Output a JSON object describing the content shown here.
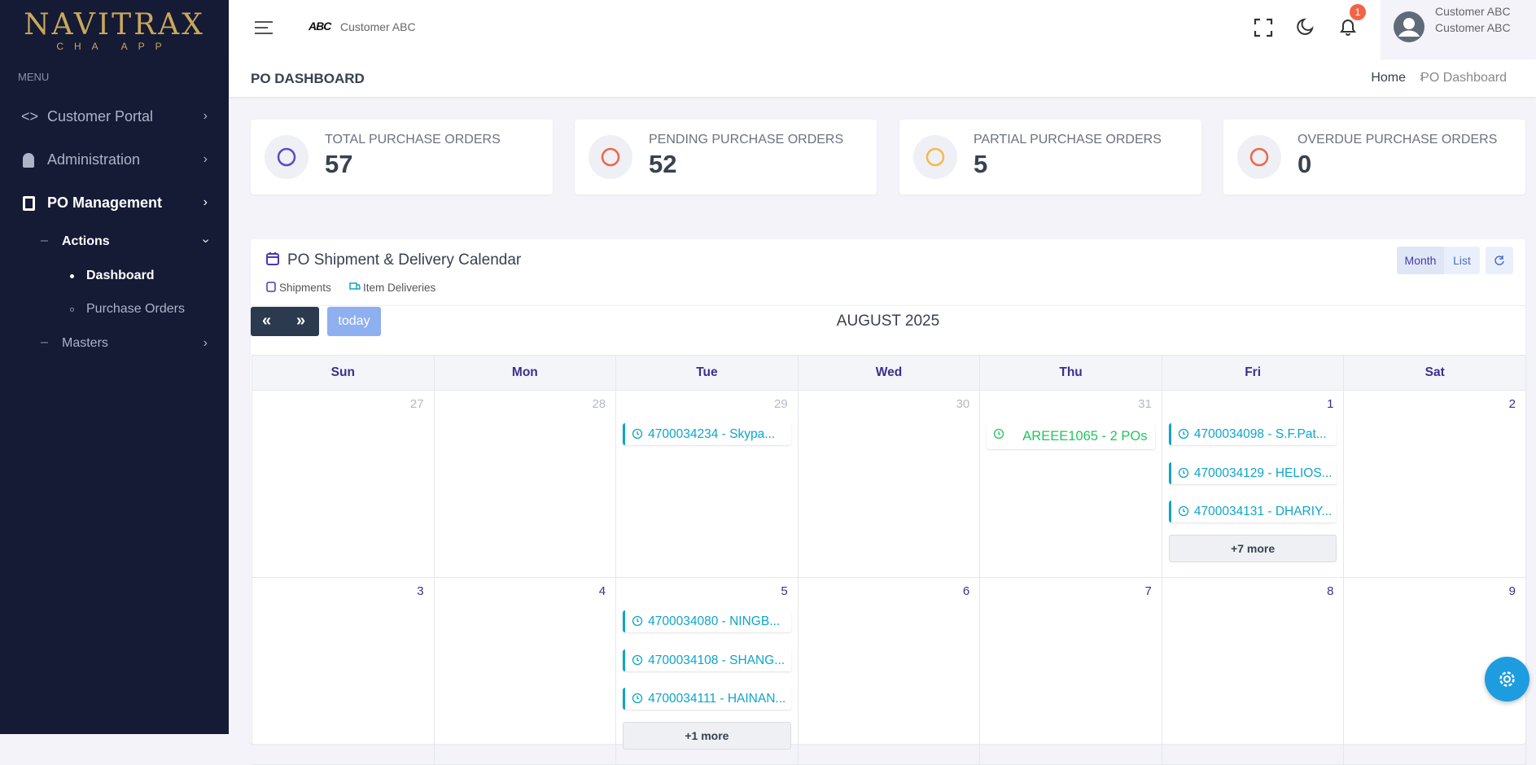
{
  "sidebar": {
    "logo": "NAVITRAX",
    "logo_sub": "CHA APP",
    "menu_label": "MENU",
    "items": [
      "Customer Portal",
      "Administration",
      "PO Management"
    ],
    "sub_items": [
      "Actions",
      "Masters"
    ],
    "leaf_items": [
      "Dashboard",
      "Purchase Orders"
    ]
  },
  "topbar": {
    "brand_logo": "ABC",
    "company": "Customer ABC",
    "notifications": 1,
    "user_name": "Customer ABC Customer ABC"
  },
  "header": {
    "title": "PO DASHBOARD",
    "breadcrumb": [
      "Home",
      "PO Dashboard"
    ]
  },
  "stats": [
    {
      "label": "TOTAL PURCHASE ORDERS",
      "value": 57
    },
    {
      "label": "PENDING PURCHASE ORDERS",
      "value": 52
    },
    {
      "label": "PARTIAL PURCHASE ORDERS",
      "value": 5
    },
    {
      "label": "OVERDUE PURCHASE ORDERS",
      "value": 0
    }
  ],
  "calendar": {
    "title": "PO Shipment & Delivery Calendar",
    "legend": [
      "Shipments",
      "Item Deliveries"
    ],
    "views": [
      "Month",
      "List"
    ],
    "today": "today",
    "month_label": "AUGUST 2025",
    "weekdays": [
      "Sun",
      "Mon",
      "Tue",
      "Wed",
      "Thu",
      "Fri",
      "Sat"
    ],
    "weeks": [
      [
        {
          "day": 27,
          "events": []
        },
        {
          "day": 28,
          "events": []
        },
        {
          "day": 29,
          "events": [
            {
              "label": "4700034234 - Skypa...",
              "color": "#0ea5c9"
            }
          ]
        },
        {
          "day": 30,
          "events": []
        },
        {
          "day": 31,
          "events": [
            {
              "label": "AREEE1065 - 2 POs",
              "color": "#22c55e"
            }
          ]
        },
        {
          "day": 1,
          "events": [
            {
              "label": "4700034098 - S.F.Pat...",
              "color": "#0ea5c9"
            },
            {
              "label": "4700034129 - HELIOS...",
              "color": "#0ea5c9"
            },
            {
              "label": "4700034131 - DHARIY...",
              "color": "#0ea5c9"
            }
          ],
          "more": "+7 more"
        },
        {
          "day": 2,
          "events": []
        }
      ],
      [
        {
          "day": 3,
          "events": []
        },
        {
          "day": 4,
          "events": []
        },
        {
          "day": 5,
          "events": [
            {
              "label": "4700034080 - NINGB...",
              "color": "#0ea5c9"
            },
            {
              "label": "4700034108 - SHANG...",
              "color": "#0ea5c9"
            },
            {
              "label": "4700034111 - HAINAN...",
              "color": "#0ea5c9"
            }
          ],
          "more": "+1 more"
        },
        {
          "day": 6,
          "events": []
        },
        {
          "day": 7,
          "events": []
        },
        {
          "day": 8,
          "events": []
        },
        {
          "day": 9,
          "events": []
        }
      ]
    ]
  }
}
